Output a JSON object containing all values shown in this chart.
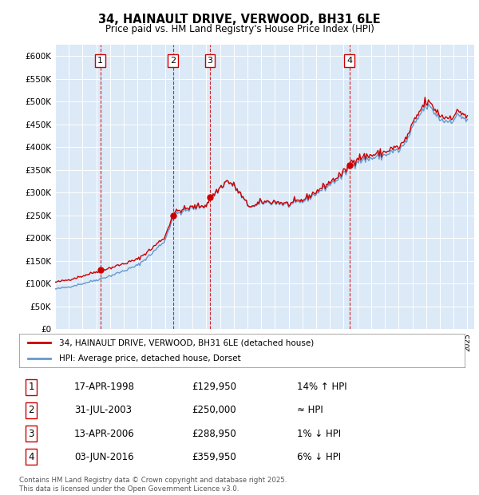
{
  "title": "34, HAINAULT DRIVE, VERWOOD, BH31 6LE",
  "subtitle": "Price paid vs. HM Land Registry's House Price Index (HPI)",
  "ylim": [
    0,
    625000
  ],
  "yticks": [
    0,
    50000,
    100000,
    150000,
    200000,
    250000,
    300000,
    350000,
    400000,
    450000,
    500000,
    550000,
    600000
  ],
  "plot_bg": "#dce9f7",
  "sale_dates": [
    1998.29,
    2003.58,
    2006.28,
    2016.42
  ],
  "sale_prices": [
    129950,
    250000,
    288950,
    359950
  ],
  "sale_labels": [
    "1",
    "2",
    "3",
    "4"
  ],
  "legend_line1": "34, HAINAULT DRIVE, VERWOOD, BH31 6LE (detached house)",
  "legend_line2": "HPI: Average price, detached house, Dorset",
  "table_entries": [
    [
      "1",
      "17-APR-1998",
      "£129,950",
      "14% ↑ HPI"
    ],
    [
      "2",
      "31-JUL-2003",
      "£250,000",
      "≈ HPI"
    ],
    [
      "3",
      "13-APR-2006",
      "£288,950",
      "1% ↓ HPI"
    ],
    [
      "4",
      "03-JUN-2016",
      "£359,950",
      "6% ↓ HPI"
    ]
  ],
  "footer": "Contains HM Land Registry data © Crown copyright and database right 2025.\nThis data is licensed under the Open Government Licence v3.0.",
  "line_color_red": "#cc0000",
  "line_color_blue": "#6699cc",
  "dashed_color": "#cc0000",
  "figsize": [
    6.0,
    6.2
  ],
  "dpi": 100
}
